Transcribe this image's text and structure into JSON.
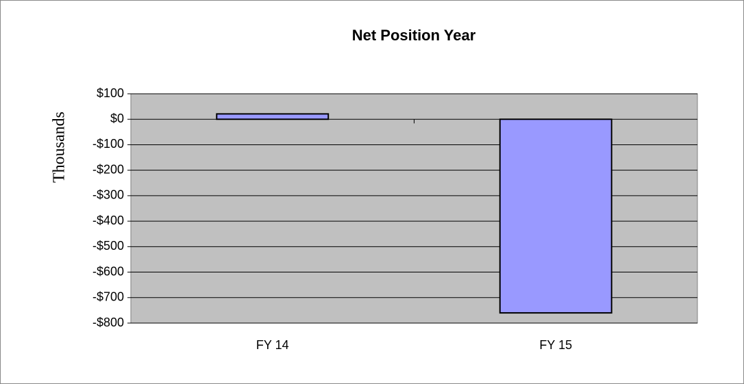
{
  "chart_data": {
    "type": "bar",
    "title": "Net Position Year",
    "y_label": "Thousands",
    "categories": [
      "FY 14",
      "FY 15"
    ],
    "values": [
      21,
      -760
    ],
    "color": "#9999ff",
    "ylim": [
      -800,
      100
    ],
    "yticks": [
      {
        "value": 100,
        "label": "$100"
      },
      {
        "value": 0,
        "label": "$0"
      },
      {
        "value": -100,
        "label": "-$100"
      },
      {
        "value": -200,
        "label": "-$200"
      },
      {
        "value": -300,
        "label": "-$300"
      },
      {
        "value": -400,
        "label": "-$400"
      },
      {
        "value": -500,
        "label": "-$500"
      },
      {
        "value": -600,
        "label": "-$600"
      },
      {
        "value": -700,
        "label": "-$700"
      },
      {
        "value": -800,
        "label": "-$800"
      }
    ],
    "grid": true,
    "plot_background": "#c0c0c0"
  }
}
